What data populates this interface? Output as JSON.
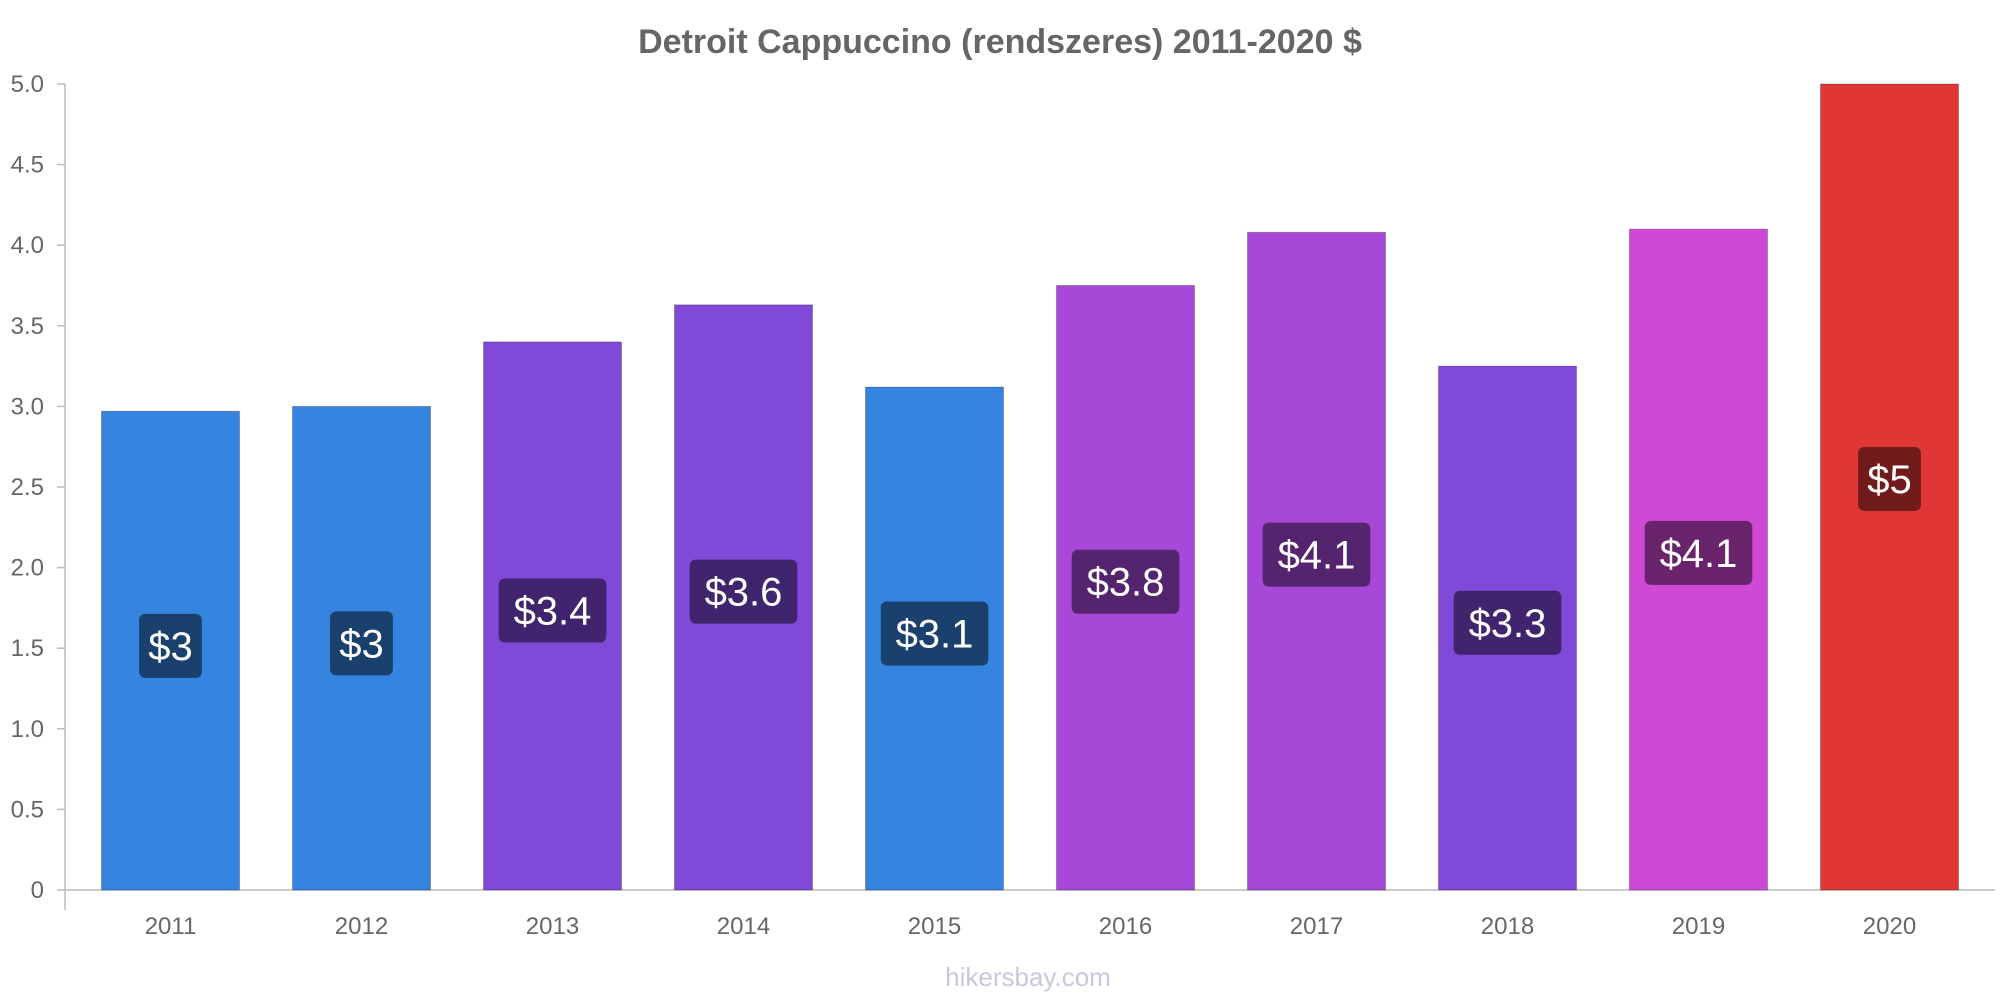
{
  "chart_data": {
    "type": "bar",
    "title": "Detroit Cappuccino (rendszeres) 2011-2020 $",
    "categories": [
      "2011",
      "2012",
      "2013",
      "2014",
      "2015",
      "2016",
      "2017",
      "2018",
      "2019",
      "2020"
    ],
    "values": [
      2.97,
      3.0,
      3.4,
      3.63,
      3.12,
      3.75,
      4.08,
      3.25,
      4.1,
      5.0
    ],
    "value_labels": [
      "$3",
      "$3",
      "$3.4",
      "$3.6",
      "$3.1",
      "$3.8",
      "$4.1",
      "$3.3",
      "$4.1",
      "$5"
    ],
    "bar_colors": [
      "#3584e0",
      "#3584e0",
      "#8049d8",
      "#8049d8",
      "#3584e0",
      "#a848d8",
      "#a848d8",
      "#8049d8",
      "#d048d6",
      "#e03636"
    ],
    "label_bg_colors": [
      "#1a406e",
      "#1a406e",
      "#40256e",
      "#40256e",
      "#1a406e",
      "#55246e",
      "#55246e",
      "#40256e",
      "#69246b",
      "#721b1b"
    ],
    "y_ticks": [
      "0",
      "0.5",
      "1.0",
      "1.5",
      "2.0",
      "2.5",
      "3.0",
      "3.5",
      "4.0",
      "4.5",
      "5.0"
    ],
    "ylim": [
      0,
      5.0
    ],
    "xlabel": "",
    "ylabel": "",
    "grid": false,
    "legend": "none"
  },
  "watermark": "hikersbay.com"
}
